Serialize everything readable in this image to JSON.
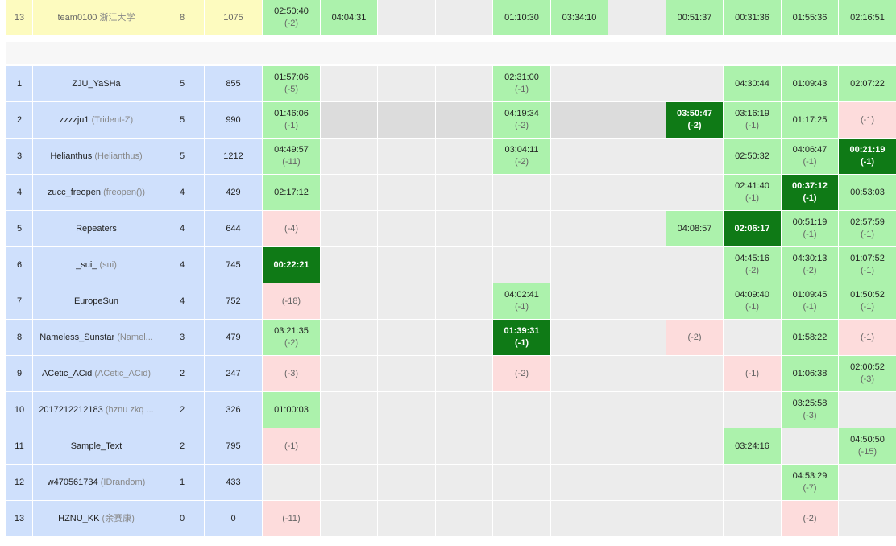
{
  "header_row": {
    "rank": "13",
    "name": "team0100",
    "name_extra": "浙江大学",
    "solved": "8",
    "penalty": "1075",
    "problems": [
      {
        "s": "ac",
        "t": "02:50:40",
        "a": "(-2)"
      },
      {
        "s": "ac",
        "t": "04:04:31",
        "a": ""
      },
      {
        "s": "empty",
        "t": "",
        "a": ""
      },
      {
        "s": "empty",
        "t": "",
        "a": ""
      },
      {
        "s": "ac",
        "t": "01:10:30",
        "a": ""
      },
      {
        "s": "ac",
        "t": "03:34:10",
        "a": ""
      },
      {
        "s": "empty",
        "t": "",
        "a": ""
      },
      {
        "s": "ac",
        "t": "00:51:37",
        "a": ""
      },
      {
        "s": "ac",
        "t": "00:31:36",
        "a": ""
      },
      {
        "s": "ac",
        "t": "01:55:36",
        "a": ""
      },
      {
        "s": "ac",
        "t": "02:16:51",
        "a": ""
      }
    ]
  },
  "rows": [
    {
      "rank": "1",
      "name": "ZJU_YaSHa",
      "name_extra": "",
      "solved": "5",
      "penalty": "855",
      "problems": [
        {
          "s": "ac",
          "t": "01:57:06",
          "a": "(-5)"
        },
        {
          "s": "empty",
          "t": "",
          "a": ""
        },
        {
          "s": "empty",
          "t": "",
          "a": ""
        },
        {
          "s": "empty",
          "t": "",
          "a": ""
        },
        {
          "s": "ac",
          "t": "02:31:00",
          "a": "(-1)"
        },
        {
          "s": "empty",
          "t": "",
          "a": ""
        },
        {
          "s": "empty",
          "t": "",
          "a": ""
        },
        {
          "s": "empty",
          "t": "",
          "a": ""
        },
        {
          "s": "ac",
          "t": "04:30:44",
          "a": ""
        },
        {
          "s": "ac",
          "t": "01:09:43",
          "a": ""
        },
        {
          "s": "ac",
          "t": "02:07:22",
          "a": ""
        }
      ]
    },
    {
      "rank": "2",
      "name": "zzzzju1",
      "name_extra": "(Trident-Z)",
      "solved": "5",
      "penalty": "990",
      "highlight": true,
      "problems": [
        {
          "s": "ac",
          "t": "01:46:06",
          "a": "(-1)"
        },
        {
          "s": "empty",
          "t": "",
          "a": ""
        },
        {
          "s": "empty",
          "t": "",
          "a": ""
        },
        {
          "s": "empty",
          "t": "",
          "a": ""
        },
        {
          "s": "ac",
          "t": "04:19:34",
          "a": "(-2)"
        },
        {
          "s": "empty",
          "t": "",
          "a": ""
        },
        {
          "s": "empty",
          "t": "",
          "a": ""
        },
        {
          "s": "fb",
          "t": "03:50:47",
          "a": "(-2)"
        },
        {
          "s": "ac",
          "t": "03:16:19",
          "a": "(-1)"
        },
        {
          "s": "ac",
          "t": "01:17:25",
          "a": ""
        },
        {
          "s": "wa",
          "t": "",
          "a": "(-1)"
        }
      ]
    },
    {
      "rank": "3",
      "name": "Helianthus",
      "name_extra": "(Helianthus)",
      "solved": "5",
      "penalty": "1212",
      "problems": [
        {
          "s": "ac",
          "t": "04:49:57",
          "a": "(-11)"
        },
        {
          "s": "empty",
          "t": "",
          "a": ""
        },
        {
          "s": "empty",
          "t": "",
          "a": ""
        },
        {
          "s": "empty",
          "t": "",
          "a": ""
        },
        {
          "s": "ac",
          "t": "03:04:11",
          "a": "(-2)"
        },
        {
          "s": "empty",
          "t": "",
          "a": ""
        },
        {
          "s": "empty",
          "t": "",
          "a": ""
        },
        {
          "s": "empty",
          "t": "",
          "a": ""
        },
        {
          "s": "ac",
          "t": "02:50:32",
          "a": ""
        },
        {
          "s": "ac",
          "t": "04:06:47",
          "a": "(-1)"
        },
        {
          "s": "fb",
          "t": "00:21:19",
          "a": "(-1)"
        }
      ]
    },
    {
      "rank": "4",
      "name": "zucc_freopen",
      "name_extra": "(freopen())",
      "solved": "4",
      "penalty": "429",
      "problems": [
        {
          "s": "ac",
          "t": "02:17:12",
          "a": ""
        },
        {
          "s": "empty",
          "t": "",
          "a": ""
        },
        {
          "s": "empty",
          "t": "",
          "a": ""
        },
        {
          "s": "empty",
          "t": "",
          "a": ""
        },
        {
          "s": "empty",
          "t": "",
          "a": ""
        },
        {
          "s": "empty",
          "t": "",
          "a": ""
        },
        {
          "s": "empty",
          "t": "",
          "a": ""
        },
        {
          "s": "empty",
          "t": "",
          "a": ""
        },
        {
          "s": "ac",
          "t": "02:41:40",
          "a": "(-1)"
        },
        {
          "s": "fb",
          "t": "00:37:12",
          "a": "(-1)"
        },
        {
          "s": "ac",
          "t": "00:53:03",
          "a": ""
        }
      ]
    },
    {
      "rank": "5",
      "name": "Repeaters",
      "name_extra": "",
      "solved": "4",
      "penalty": "644",
      "problems": [
        {
          "s": "wa",
          "t": "",
          "a": "(-4)"
        },
        {
          "s": "empty",
          "t": "",
          "a": ""
        },
        {
          "s": "empty",
          "t": "",
          "a": ""
        },
        {
          "s": "empty",
          "t": "",
          "a": ""
        },
        {
          "s": "empty",
          "t": "",
          "a": ""
        },
        {
          "s": "empty",
          "t": "",
          "a": ""
        },
        {
          "s": "empty",
          "t": "",
          "a": ""
        },
        {
          "s": "ac",
          "t": "04:08:57",
          "a": ""
        },
        {
          "s": "fb",
          "t": "02:06:17",
          "a": ""
        },
        {
          "s": "ac",
          "t": "00:51:19",
          "a": "(-1)"
        },
        {
          "s": "ac",
          "t": "02:57:59",
          "a": "(-1)"
        }
      ]
    },
    {
      "rank": "6",
      "name": "_sui_",
      "name_extra": "(sui)",
      "solved": "4",
      "penalty": "745",
      "problems": [
        {
          "s": "fb",
          "t": "00:22:21",
          "a": ""
        },
        {
          "s": "empty",
          "t": "",
          "a": ""
        },
        {
          "s": "empty",
          "t": "",
          "a": ""
        },
        {
          "s": "empty",
          "t": "",
          "a": ""
        },
        {
          "s": "empty",
          "t": "",
          "a": ""
        },
        {
          "s": "empty",
          "t": "",
          "a": ""
        },
        {
          "s": "empty",
          "t": "",
          "a": ""
        },
        {
          "s": "empty",
          "t": "",
          "a": ""
        },
        {
          "s": "ac",
          "t": "04:45:16",
          "a": "(-2)"
        },
        {
          "s": "ac",
          "t": "04:30:13",
          "a": "(-2)"
        },
        {
          "s": "ac",
          "t": "01:07:52",
          "a": "(-1)"
        }
      ]
    },
    {
      "rank": "7",
      "name": "EuropeSun",
      "name_extra": "",
      "solved": "4",
      "penalty": "752",
      "problems": [
        {
          "s": "wa",
          "t": "",
          "a": "(-18)"
        },
        {
          "s": "empty",
          "t": "",
          "a": ""
        },
        {
          "s": "empty",
          "t": "",
          "a": ""
        },
        {
          "s": "empty",
          "t": "",
          "a": ""
        },
        {
          "s": "ac",
          "t": "04:02:41",
          "a": "(-1)"
        },
        {
          "s": "empty",
          "t": "",
          "a": ""
        },
        {
          "s": "empty",
          "t": "",
          "a": ""
        },
        {
          "s": "empty",
          "t": "",
          "a": ""
        },
        {
          "s": "ac",
          "t": "04:09:40",
          "a": "(-1)"
        },
        {
          "s": "ac",
          "t": "01:09:45",
          "a": "(-1)"
        },
        {
          "s": "ac",
          "t": "01:50:52",
          "a": "(-1)"
        }
      ]
    },
    {
      "rank": "8",
      "name": "Nameless_Sunstar",
      "name_extra": "(Namel...",
      "solved": "3",
      "penalty": "479",
      "problems": [
        {
          "s": "ac",
          "t": "03:21:35",
          "a": "(-2)"
        },
        {
          "s": "empty",
          "t": "",
          "a": ""
        },
        {
          "s": "empty",
          "t": "",
          "a": ""
        },
        {
          "s": "empty",
          "t": "",
          "a": ""
        },
        {
          "s": "fb",
          "t": "01:39:31",
          "a": "(-1)"
        },
        {
          "s": "empty",
          "t": "",
          "a": ""
        },
        {
          "s": "empty",
          "t": "",
          "a": ""
        },
        {
          "s": "wa",
          "t": "",
          "a": "(-2)"
        },
        {
          "s": "empty",
          "t": "",
          "a": ""
        },
        {
          "s": "ac",
          "t": "01:58:22",
          "a": ""
        },
        {
          "s": "wa",
          "t": "",
          "a": "(-1)"
        }
      ]
    },
    {
      "rank": "9",
      "name": "ACetic_ACid",
      "name_extra": "(ACetic_ACid)",
      "solved": "2",
      "penalty": "247",
      "problems": [
        {
          "s": "wa",
          "t": "",
          "a": "(-3)"
        },
        {
          "s": "empty",
          "t": "",
          "a": ""
        },
        {
          "s": "empty",
          "t": "",
          "a": ""
        },
        {
          "s": "empty",
          "t": "",
          "a": ""
        },
        {
          "s": "wa",
          "t": "",
          "a": "(-2)"
        },
        {
          "s": "empty",
          "t": "",
          "a": ""
        },
        {
          "s": "empty",
          "t": "",
          "a": ""
        },
        {
          "s": "empty",
          "t": "",
          "a": ""
        },
        {
          "s": "wa",
          "t": "",
          "a": "(-1)"
        },
        {
          "s": "ac",
          "t": "01:06:38",
          "a": ""
        },
        {
          "s": "ac",
          "t": "02:00:52",
          "a": "(-3)"
        }
      ]
    },
    {
      "rank": "10",
      "name": "2017212212183",
      "name_extra": "(hznu zkq ...",
      "solved": "2",
      "penalty": "326",
      "problems": [
        {
          "s": "ac",
          "t": "01:00:03",
          "a": ""
        },
        {
          "s": "empty",
          "t": "",
          "a": ""
        },
        {
          "s": "empty",
          "t": "",
          "a": ""
        },
        {
          "s": "empty",
          "t": "",
          "a": ""
        },
        {
          "s": "empty",
          "t": "",
          "a": ""
        },
        {
          "s": "empty",
          "t": "",
          "a": ""
        },
        {
          "s": "empty",
          "t": "",
          "a": ""
        },
        {
          "s": "empty",
          "t": "",
          "a": ""
        },
        {
          "s": "empty",
          "t": "",
          "a": ""
        },
        {
          "s": "ac",
          "t": "03:25:58",
          "a": "(-3)"
        },
        {
          "s": "empty",
          "t": "",
          "a": ""
        }
      ]
    },
    {
      "rank": "11",
      "name": "Sample_Text",
      "name_extra": "",
      "solved": "2",
      "penalty": "795",
      "problems": [
        {
          "s": "wa",
          "t": "",
          "a": "(-1)"
        },
        {
          "s": "empty",
          "t": "",
          "a": ""
        },
        {
          "s": "empty",
          "t": "",
          "a": ""
        },
        {
          "s": "empty",
          "t": "",
          "a": ""
        },
        {
          "s": "empty",
          "t": "",
          "a": ""
        },
        {
          "s": "empty",
          "t": "",
          "a": ""
        },
        {
          "s": "empty",
          "t": "",
          "a": ""
        },
        {
          "s": "empty",
          "t": "",
          "a": ""
        },
        {
          "s": "ac",
          "t": "03:24:16",
          "a": ""
        },
        {
          "s": "empty",
          "t": "",
          "a": ""
        },
        {
          "s": "ac",
          "t": "04:50:50",
          "a": "(-15)"
        }
      ]
    },
    {
      "rank": "12",
      "name": "w470561734",
      "name_extra": "(IDrandom)",
      "solved": "1",
      "penalty": "433",
      "problems": [
        {
          "s": "empty",
          "t": "",
          "a": ""
        },
        {
          "s": "empty",
          "t": "",
          "a": ""
        },
        {
          "s": "empty",
          "t": "",
          "a": ""
        },
        {
          "s": "empty",
          "t": "",
          "a": ""
        },
        {
          "s": "empty",
          "t": "",
          "a": ""
        },
        {
          "s": "empty",
          "t": "",
          "a": ""
        },
        {
          "s": "empty",
          "t": "",
          "a": ""
        },
        {
          "s": "empty",
          "t": "",
          "a": ""
        },
        {
          "s": "empty",
          "t": "",
          "a": ""
        },
        {
          "s": "ac",
          "t": "04:53:29",
          "a": "(-7)"
        },
        {
          "s": "empty",
          "t": "",
          "a": ""
        }
      ]
    },
    {
      "rank": "13",
      "name": "HZNU_KK",
      "name_extra": "(余赛康)",
      "solved": "0",
      "penalty": "0",
      "problems": [
        {
          "s": "wa",
          "t": "",
          "a": "(-11)"
        },
        {
          "s": "empty",
          "t": "",
          "a": ""
        },
        {
          "s": "empty",
          "t": "",
          "a": ""
        },
        {
          "s": "empty",
          "t": "",
          "a": ""
        },
        {
          "s": "empty",
          "t": "",
          "a": ""
        },
        {
          "s": "empty",
          "t": "",
          "a": ""
        },
        {
          "s": "empty",
          "t": "",
          "a": ""
        },
        {
          "s": "empty",
          "t": "",
          "a": ""
        },
        {
          "s": "empty",
          "t": "",
          "a": ""
        },
        {
          "s": "wa",
          "t": "",
          "a": "(-2)"
        },
        {
          "s": "empty",
          "t": "",
          "a": ""
        }
      ]
    }
  ]
}
